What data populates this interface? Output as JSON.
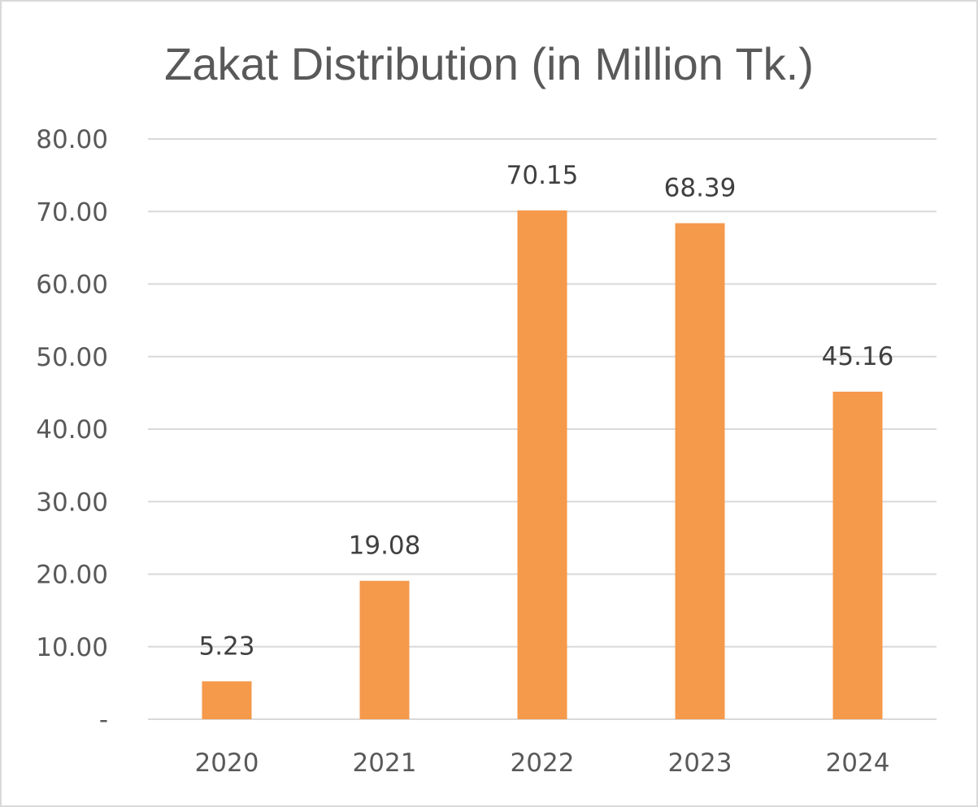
{
  "chart_data": {
    "type": "bar",
    "title": "Zakat Distribution (in Million Tk.)",
    "xlabel": "",
    "ylabel": "",
    "categories": [
      "2020",
      "2021",
      "2022",
      "2023",
      "2024"
    ],
    "values": [
      5.23,
      19.08,
      70.15,
      68.39,
      45.16
    ],
    "data_labels": [
      "5.23",
      "19.08",
      "70.15",
      "68.39",
      "45.16"
    ],
    "ylim": [
      0,
      80
    ],
    "yticks": [
      0,
      10,
      20,
      30,
      40,
      50,
      60,
      70,
      80
    ],
    "ytick_labels": [
      "-",
      "10.00",
      "20.00",
      "30.00",
      "40.00",
      "50.00",
      "60.00",
      "70.00",
      "80.00"
    ],
    "grid": true,
    "legend": "none",
    "bar_color": "#F5994B",
    "grid_color": "#D9D9D9",
    "text_color": "#595959"
  }
}
